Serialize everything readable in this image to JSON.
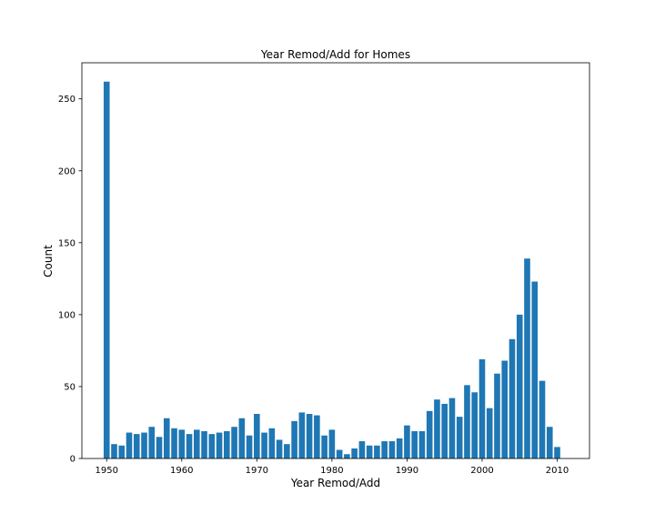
{
  "chart_data": {
    "type": "bar",
    "title": "Year Remod/Add for Homes",
    "xlabel": "Year Remod/Add",
    "ylabel": "Count",
    "x": [
      1950,
      1951,
      1952,
      1953,
      1954,
      1955,
      1956,
      1957,
      1958,
      1959,
      1960,
      1961,
      1962,
      1963,
      1964,
      1965,
      1966,
      1967,
      1968,
      1969,
      1970,
      1971,
      1972,
      1973,
      1974,
      1975,
      1976,
      1977,
      1978,
      1979,
      1980,
      1981,
      1982,
      1983,
      1984,
      1985,
      1986,
      1987,
      1988,
      1989,
      1990,
      1991,
      1992,
      1993,
      1994,
      1995,
      1996,
      1997,
      1998,
      1999,
      2000,
      2001,
      2002,
      2003,
      2004,
      2005,
      2006,
      2007,
      2008,
      2009,
      2010
    ],
    "values": [
      262,
      10,
      9,
      18,
      17,
      18,
      22,
      15,
      28,
      21,
      20,
      17,
      20,
      19,
      17,
      18,
      19,
      22,
      28,
      16,
      31,
      18,
      21,
      13,
      10,
      26,
      32,
      31,
      30,
      16,
      20,
      6,
      3,
      7,
      12,
      9,
      9,
      12,
      12,
      14,
      23,
      19,
      19,
      33,
      41,
      38,
      42,
      29,
      51,
      46,
      69,
      35,
      59,
      68,
      83,
      100,
      139,
      123,
      54,
      22,
      8
    ],
    "xlim": [
      1946.7,
      2014.3
    ],
    "ylim": [
      0,
      275.1
    ],
    "xticks": [
      1950,
      1960,
      1970,
      1980,
      1990,
      2000,
      2010
    ],
    "yticks": [
      0,
      50,
      100,
      150,
      200,
      250
    ],
    "bar_width": 0.8,
    "bar_color": "#1f77b4",
    "grid": false,
    "legend": "none"
  }
}
